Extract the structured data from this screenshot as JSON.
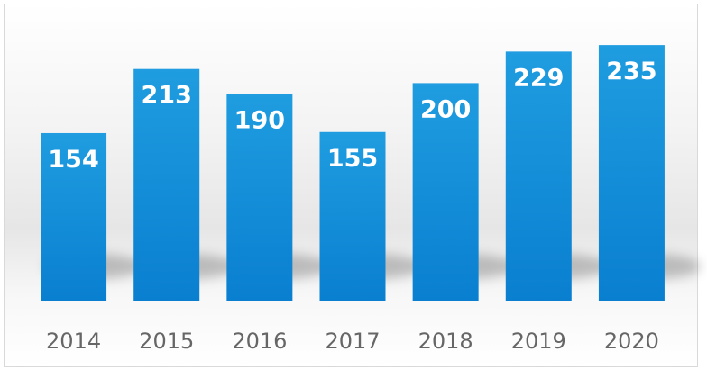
{
  "chart_data": {
    "type": "bar",
    "categories": [
      "2014",
      "2015",
      "2016",
      "2017",
      "2018",
      "2019",
      "2020"
    ],
    "values": [
      154,
      213,
      190,
      155,
      200,
      229,
      235
    ],
    "title": "",
    "xlabel": "",
    "ylabel": "",
    "ylim": [
      0,
      250
    ],
    "grid": false,
    "legend": "none",
    "colors": {
      "bar_top": "#1f9de0",
      "bar_bottom": "#0a7fd0",
      "label": "#ffffff",
      "tick": "#666666"
    }
  }
}
